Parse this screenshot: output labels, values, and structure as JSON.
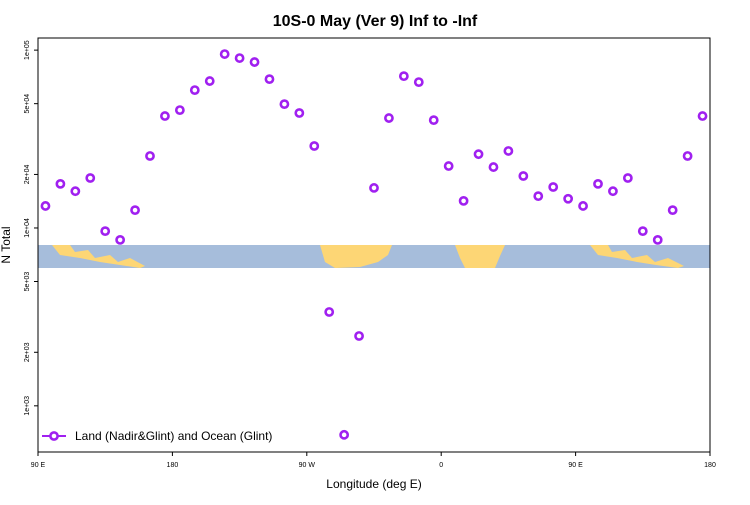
{
  "chart_data": {
    "type": "scatter",
    "title": "10S-0 May (Ver 9)   Inf to -Inf",
    "x_label": "Longitude (deg E)",
    "y_label": "N Total",
    "x": [
      95,
      105,
      115,
      125,
      135,
      145,
      155,
      165,
      175,
      185,
      195,
      205,
      215,
      225,
      235,
      245,
      255,
      265,
      275,
      285,
      295,
      305,
      315,
      325,
      335,
      345,
      355,
      365,
      375,
      385,
      395,
      405,
      415,
      425,
      435,
      445,
      455,
      465,
      475,
      485,
      495,
      505,
      515,
      525,
      535
    ],
    "series": [
      {
        "name": "Land (Nadir&Glint) and Ocean (Glint)",
        "color": "#a020f0",
        "values": [
          13300,
          17700,
          16100,
          19100,
          9600,
          8570,
          12600,
          25400,
          42600,
          46000,
          59600,
          67000,
          95000,
          90200,
          85700,
          68700,
          49700,
          44300,
          28900,
          3370,
          687,
          2470,
          16800,
          41500,
          71400,
          66100,
          40400,
          22300,
          14200,
          26000,
          22000,
          27100,
          19600,
          15100,
          17000,
          14600,
          13300,
          17700,
          16100,
          19100,
          9600,
          8570,
          12600,
          25400,
          42600
        ]
      }
    ],
    "xlim": [
      90,
      540
    ],
    "xticks": [
      {
        "value": 90,
        "label": "90 E"
      },
      {
        "value": 180,
        "label": "180"
      },
      {
        "value": 270,
        "label": "90 W"
      },
      {
        "value": 360,
        "label": "0"
      },
      {
        "value": 450,
        "label": "90 E"
      },
      {
        "value": 540,
        "label": "180"
      }
    ],
    "ylim": [
      550,
      117000
    ],
    "yticks": [
      {
        "value": 1000,
        "label": "1e+03"
      },
      {
        "value": 2000,
        "label": "2e+03"
      },
      {
        "value": 5000,
        "label": "5e+03"
      },
      {
        "value": 10000,
        "label": "1e+04"
      },
      {
        "value": 20000,
        "label": "2e+04"
      },
      {
        "value": 50000,
        "label": "5e+04"
      },
      {
        "value": 100000,
        "label": "1e+05"
      }
    ],
    "y_scale": "log",
    "legend": "bottom-left"
  }
}
